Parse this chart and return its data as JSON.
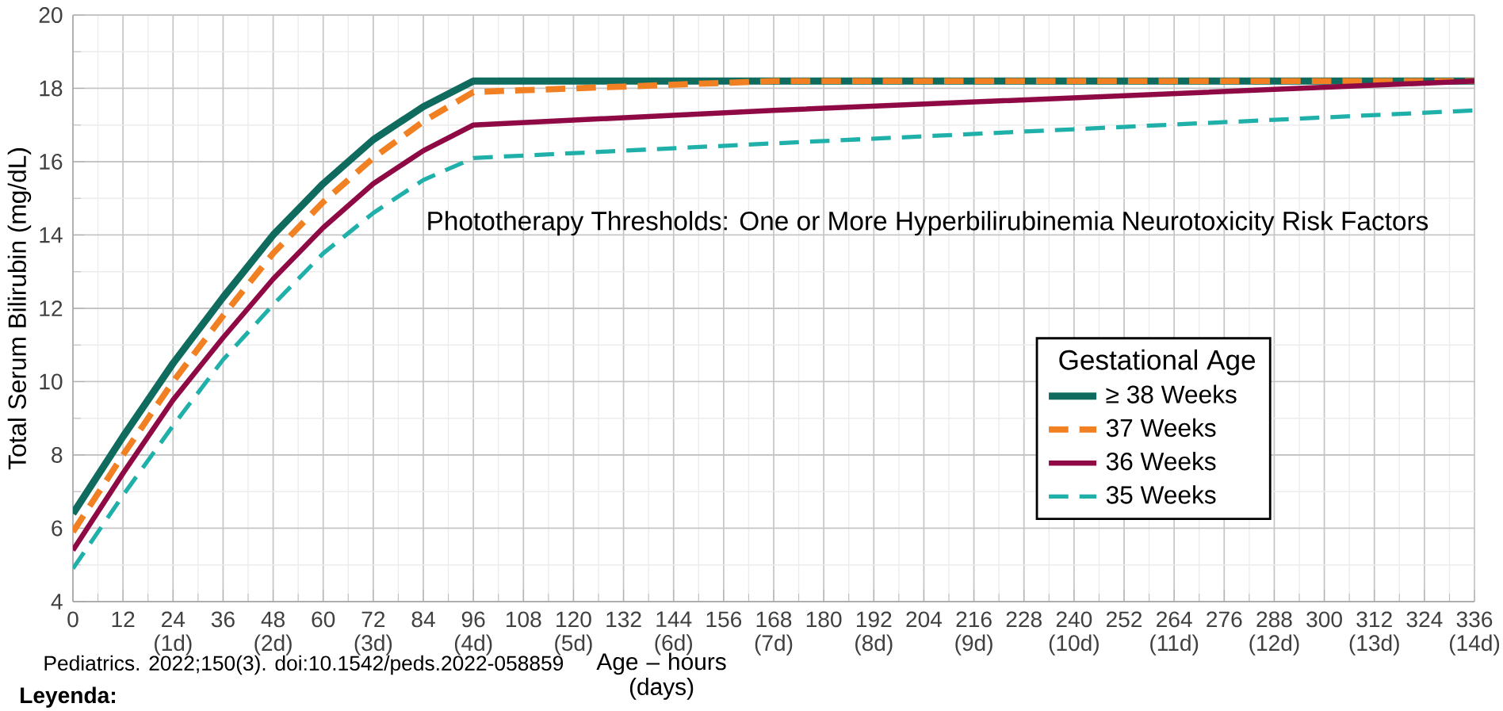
{
  "chart_data": {
    "type": "line",
    "xlabel": "Age – hours (days)",
    "ylabel": "Total Serum Bilirubin (mg/dL)",
    "legend_title": "Gestational Age",
    "annotations": [
      "Phototherapy Thresholds:  One or More Hyperbilirubinemia Neurotoxicity Risk Factors",
      "Pediatrics. 2022;150(3). doi:10.1542/peds.2022-058859",
      "Leyenda:"
    ],
    "x": [
      0,
      12,
      24,
      36,
      48,
      60,
      72,
      84,
      96,
      168,
      336
    ],
    "series": [
      {
        "name": "≥ 38 Weeks",
        "color": "#0f6b5e",
        "line_style": "solid",
        "values": [
          6.4,
          8.5,
          10.5,
          12.3,
          14.0,
          15.4,
          16.6,
          17.5,
          18.2,
          18.2,
          18.2
        ]
      },
      {
        "name": "37 Weeks",
        "color": "#f08021",
        "line_style": "dashed",
        "values": [
          5.9,
          8.0,
          10.0,
          11.8,
          13.5,
          14.9,
          16.1,
          17.1,
          17.9,
          18.2,
          18.2
        ]
      },
      {
        "name": "36 Weeks",
        "color": "#8f0a45",
        "line_style": "solid",
        "values": [
          5.4,
          7.5,
          9.5,
          11.2,
          12.8,
          14.2,
          15.4,
          16.3,
          17.0,
          17.4,
          18.2
        ]
      },
      {
        "name": "35 Weeks",
        "color": "#1fb0aa",
        "line_style": "dashed",
        "values": [
          4.9,
          6.9,
          8.8,
          10.6,
          12.1,
          13.5,
          14.6,
          15.5,
          16.1,
          16.5,
          17.4
        ]
      }
    ],
    "xlim": [
      0,
      336
    ],
    "ylim": [
      4,
      20
    ],
    "xticks": [
      0,
      12,
      {
        "value": 24,
        "label": "24 (1d)"
      },
      36,
      {
        "value": 48,
        "label": "48 (2d)"
      },
      60,
      {
        "value": 72,
        "label": "72 (3d)"
      },
      84,
      {
        "value": 96,
        "label": "96 (4d)"
      },
      108,
      {
        "value": 120,
        "label": "120 (5d)"
      },
      132,
      {
        "value": 144,
        "label": "144 (6d)"
      },
      156,
      {
        "value": 168,
        "label": "168 (7d)"
      },
      180,
      {
        "value": 192,
        "label": "192 (8d)"
      },
      204,
      {
        "value": 216,
        "label": "216 (9d)"
      },
      228,
      {
        "value": 240,
        "label": "240 (10d)"
      },
      252,
      {
        "value": 264,
        "label": "264 (11d)"
      },
      276,
      {
        "value": 288,
        "label": "288 (12d)"
      },
      300,
      {
        "value": 312,
        "label": "312 (13d)"
      },
      324,
      {
        "value": 336,
        "label": "336 (14d)"
      }
    ],
    "yticks": [
      4,
      6,
      8,
      10,
      12,
      14,
      16,
      18,
      20
    ],
    "grid": true,
    "legend": "right",
    "marker": "none"
  }
}
